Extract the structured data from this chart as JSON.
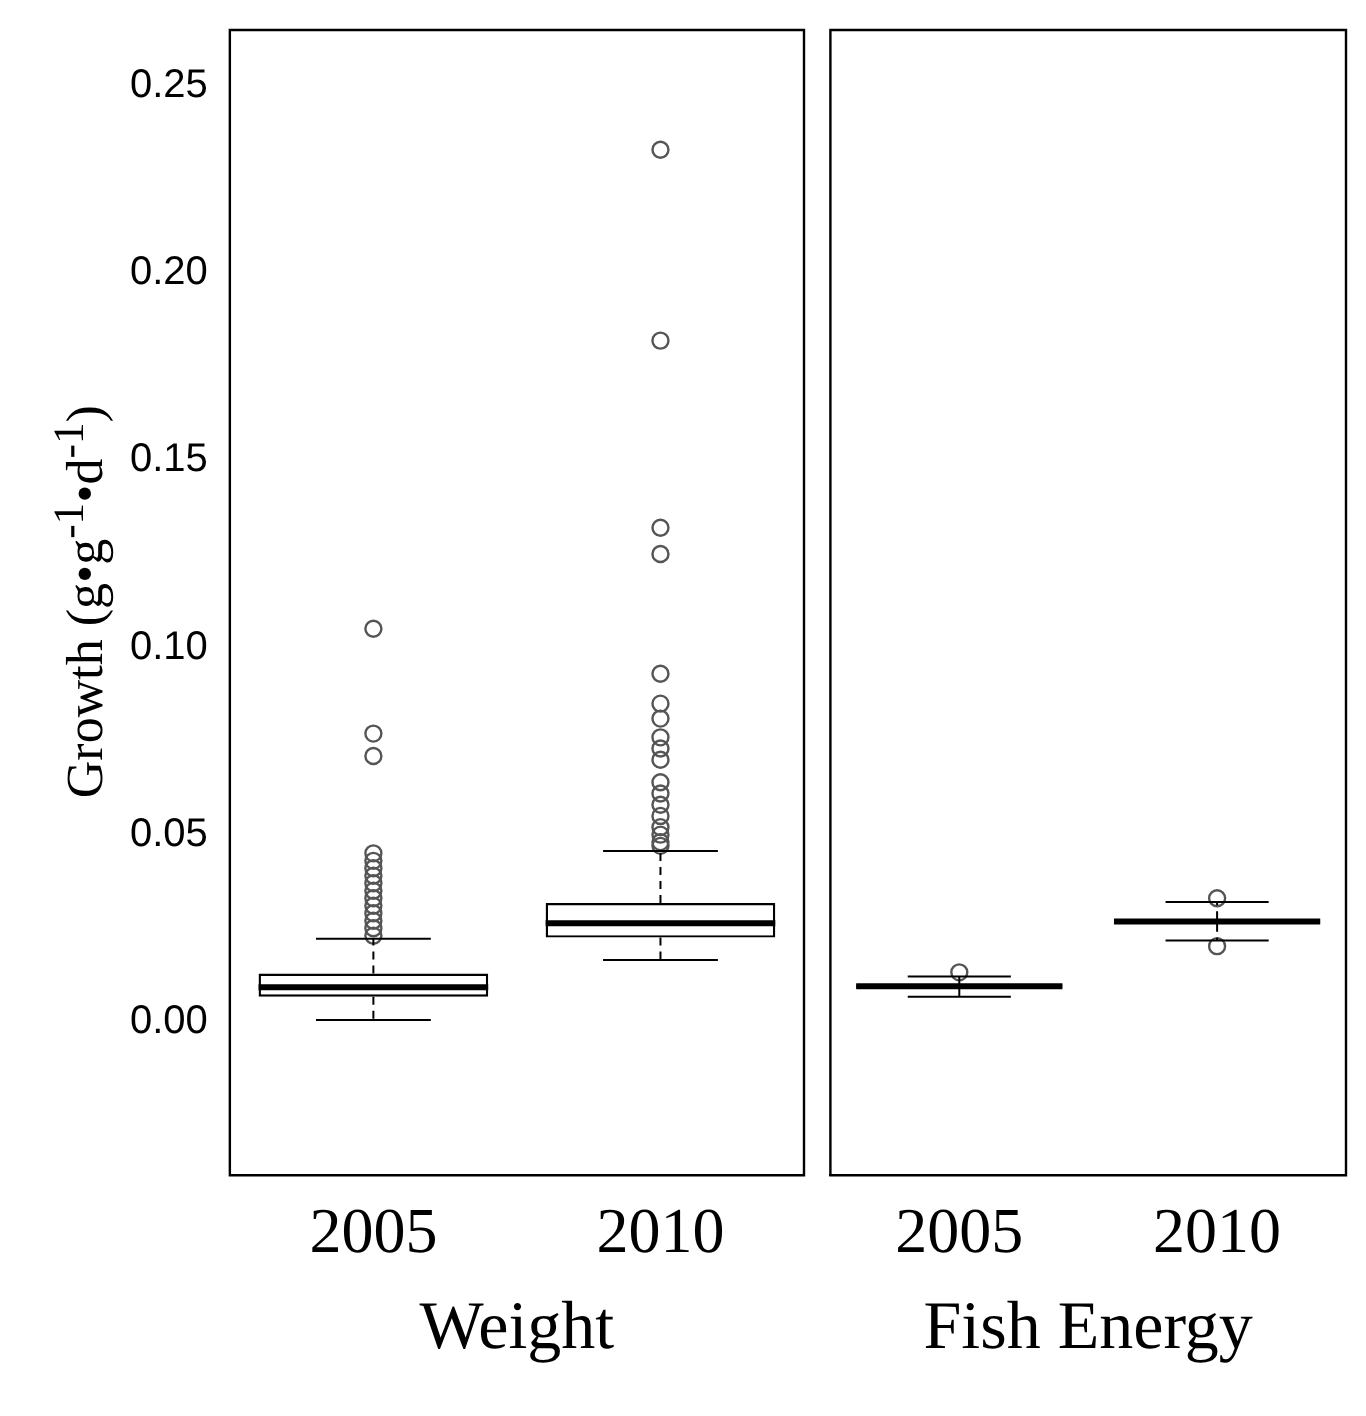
{
  "chart_data": [
    {
      "type": "box",
      "xlabel": "Weight",
      "ylabel": "Growth (g•g$^{-1}$•d$^{-1}$)",
      "categories": [
        "2005",
        "2010"
      ],
      "boxes": [
        {
          "low": 0.0005,
          "q1": 0.0067,
          "median": 0.0092,
          "q3": 0.0129,
          "high": 0.0222,
          "outliers": [
            0.023,
            0.025,
            0.027,
            0.029,
            0.031,
            0.033,
            0.035,
            0.037,
            0.039,
            0.041,
            0.043,
            0.045,
            0.071,
            0.077,
            0.105
          ]
        },
        {
          "low": 0.0165,
          "q1": 0.0225,
          "median": 0.0263,
          "q3": 0.0317,
          "high": 0.0456,
          "outliers": [
            0.047,
            0.048,
            0.05,
            0.052,
            0.055,
            0.058,
            0.061,
            0.064,
            0.07,
            0.073,
            0.076,
            0.081,
            0.085,
            0.093,
            0.125,
            0.132,
            0.182,
            0.233
          ]
        }
      ],
      "ylim": [
        -0.041,
        0.265
      ],
      "yticks": [
        {
          "value": 0,
          "label": "0.00"
        },
        {
          "value": 0.05,
          "label": "0.05"
        },
        {
          "value": 0.1,
          "label": "0.10"
        },
        {
          "value": 0.15,
          "label": "0.15"
        },
        {
          "value": 0.2,
          "label": "0.20"
        },
        {
          "value": 0.25,
          "label": "0.25"
        }
      ]
    },
    {
      "type": "box",
      "xlabel": "Fish Energy",
      "categories": [
        "2005",
        "2010"
      ],
      "boxes": [
        {
          "low": 0.0067,
          "q1": 0.009,
          "median": 0.0095,
          "q3": 0.01,
          "high": 0.0121,
          "outliers": [
            0.0132
          ]
        },
        {
          "low": 0.0217,
          "q1": 0.0262,
          "median": 0.0268,
          "q3": 0.0274,
          "high": 0.032,
          "outliers": [
            0.0202,
            0.033
          ]
        }
      ],
      "ylim": [
        -0.041,
        0.265
      ],
      "tick_labels": "x"
    }
  ]
}
